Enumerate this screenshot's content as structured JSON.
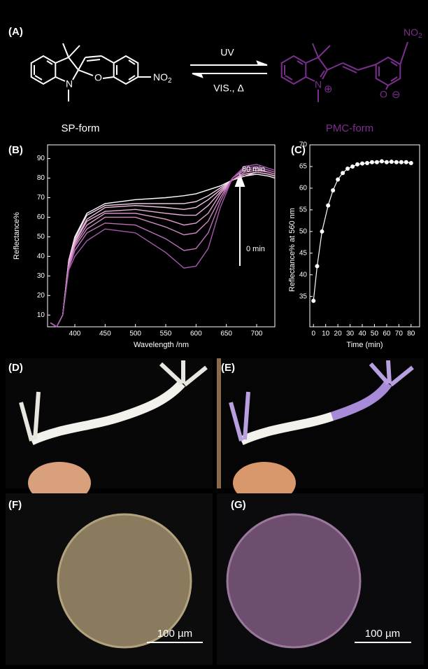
{
  "panel_a": {
    "label": "(A)",
    "sp_label": "SP-form",
    "pmc_label": "PMC-form",
    "forward": "UV",
    "reverse": "VIS., Δ",
    "sp_atoms": [
      "N",
      "O"
    ],
    "sp_nitro": {
      "main": "NO",
      "sub": "2"
    },
    "pmc_atoms": [
      "N",
      "⊕",
      "O",
      "⊖"
    ],
    "pmc_nitro": {
      "main": "NO",
      "sub": "2"
    }
  },
  "chart_data": [
    {
      "type": "line",
      "label": "(B)",
      "xlabel": "Wavelength /nm",
      "ylabel": "Reflectance%",
      "x": [
        360,
        370,
        380,
        390,
        400,
        420,
        450,
        500,
        550,
        580,
        600,
        620,
        640,
        660,
        680,
        700,
        720,
        730
      ],
      "series": [
        {
          "color": "#ffffff",
          "values": [
            6,
            4,
            10,
            38,
            50,
            62,
            67,
            69,
            70,
            71,
            72,
            74,
            76,
            79,
            81,
            82,
            81,
            80
          ]
        },
        {
          "color": "#f6d6ee",
          "values": [
            6,
            4,
            10,
            38,
            49,
            61,
            66,
            67,
            67,
            67,
            68,
            71,
            75,
            79,
            81,
            83,
            82,
            81
          ]
        },
        {
          "color": "#f0c2e4",
          "values": [
            6,
            4,
            10,
            37,
            48,
            59,
            65,
            66,
            65,
            64,
            65,
            69,
            74,
            79,
            82,
            83,
            82,
            81
          ]
        },
        {
          "color": "#e9afd9",
          "values": [
            6,
            4,
            10,
            37,
            47,
            58,
            63,
            64,
            62,
            61,
            61,
            66,
            73,
            79,
            82,
            83,
            82,
            81
          ]
        },
        {
          "color": "#de9dcf",
          "values": [
            6,
            4,
            10,
            36,
            46,
            56,
            62,
            62,
            59,
            56,
            57,
            62,
            72,
            79,
            83,
            84,
            83,
            82
          ]
        },
        {
          "color": "#cf88c4",
          "values": [
            6,
            4,
            10,
            35,
            45,
            54,
            60,
            60,
            55,
            51,
            52,
            58,
            70,
            80,
            84,
            85,
            83,
            82
          ]
        },
        {
          "color": "#bb6fb8",
          "values": [
            6,
            4,
            10,
            34,
            43,
            52,
            57,
            56,
            49,
            43,
            44,
            52,
            68,
            80,
            85,
            86,
            84,
            83
          ]
        },
        {
          "color": "#a458ad",
          "values": [
            6,
            4,
            10,
            33,
            40,
            48,
            54,
            52,
            42,
            34,
            35,
            44,
            65,
            80,
            86,
            87,
            85,
            84
          ]
        }
      ],
      "xlim": [
        355,
        730
      ],
      "ylim": [
        4,
        97
      ],
      "xticks": [
        400,
        450,
        500,
        550,
        600,
        650,
        700
      ],
      "yticks": [
        10,
        20,
        30,
        40,
        50,
        60,
        70,
        80,
        90
      ],
      "annotations": [
        "80 min",
        "0 min"
      ]
    },
    {
      "type": "scatter",
      "label": "(C)",
      "xlabel": "Time (min)",
      "ylabel": "Reflectance% at 560 nm",
      "x": [
        0,
        3,
        7,
        12,
        16,
        20,
        24,
        28,
        32,
        36,
        40,
        44,
        48,
        52,
        56,
        60,
        64,
        68,
        72,
        76,
        80
      ],
      "values": [
        34,
        42,
        50,
        56,
        59.5,
        62,
        63.5,
        64.5,
        65,
        65.5,
        65.7,
        65.8,
        66,
        66,
        66.2,
        66,
        66.1,
        66,
        66,
        66,
        65.8
      ],
      "color": "#ffffff",
      "xlim": [
        -3,
        87
      ],
      "ylim": [
        28,
        70
      ],
      "xticks": [
        0,
        10,
        20,
        30,
        40,
        50,
        60,
        70,
        80
      ],
      "yticks": [
        35,
        40,
        45,
        50,
        55,
        60,
        65,
        70
      ]
    }
  ],
  "photos": [
    {
      "label": "(D)"
    },
    {
      "label": "(E)"
    },
    {
      "label": "(F)",
      "scale": "100 µm"
    },
    {
      "label": "(G)",
      "scale": "100 µm"
    }
  ]
}
